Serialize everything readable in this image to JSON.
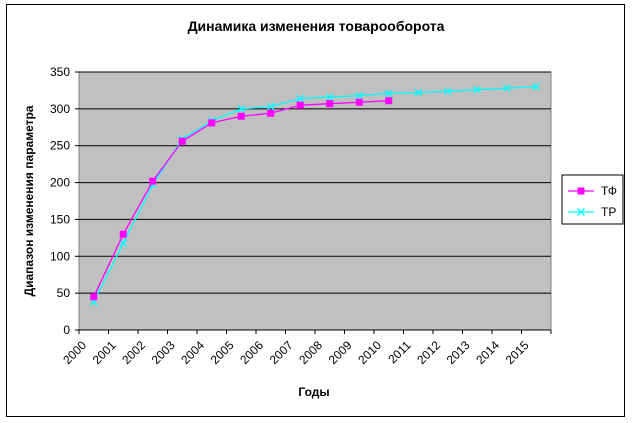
{
  "chart_data": {
    "type": "line",
    "title": "Динамика изменения товарооборота",
    "xlabel": "Годы",
    "ylabel": "Диапазон изменения параметра",
    "categories": [
      "2000",
      "2001",
      "2002",
      "2003",
      "2004",
      "2005",
      "2006",
      "2007",
      "2008",
      "2009",
      "2010",
      "2011",
      "2012",
      "2013",
      "2014",
      "2015"
    ],
    "ylim": [
      0,
      350
    ],
    "yticks": [
      0,
      50,
      100,
      150,
      200,
      250,
      300,
      350
    ],
    "grid": true,
    "legend_position": "right",
    "plot_background": "#c0c0c0",
    "series": [
      {
        "name": "ТФ",
        "color": "#ff00ff",
        "marker": "square",
        "values": [
          45,
          130,
          202,
          256,
          281,
          290,
          294,
          305,
          307,
          309,
          311,
          null,
          null,
          null,
          null,
          null
        ]
      },
      {
        "name": "ТР",
        "color": "#00ffff",
        "marker": "x",
        "values": [
          38,
          118,
          197,
          259,
          284,
          300,
          303,
          314,
          316,
          318,
          321,
          322,
          324,
          326,
          328,
          330
        ]
      }
    ]
  }
}
